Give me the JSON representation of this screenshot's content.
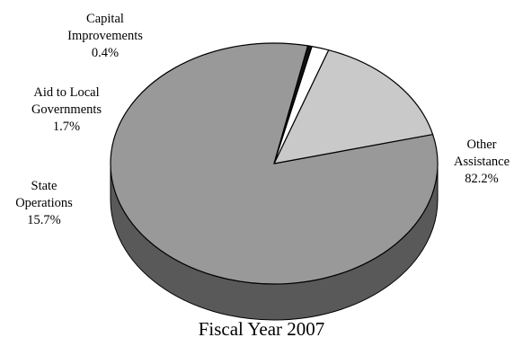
{
  "chart_data": {
    "type": "pie",
    "title": "Fiscal Year 2007",
    "slices": [
      {
        "label_lines": [
          "Other",
          "Assistance"
        ],
        "value": 82.2,
        "value_text": "82.2%",
        "color": "#999999",
        "side_color": "#595959"
      },
      {
        "label_lines": [
          "State",
          "Operations"
        ],
        "value": 15.7,
        "value_text": "15.7%",
        "color": "#c9c9c9",
        "side_color": "#8a8a8a"
      },
      {
        "label_lines": [
          "Aid to Local",
          "Governments"
        ],
        "value": 1.7,
        "value_text": "1.7%",
        "color": "#ffffff",
        "side_color": "#cccccc"
      },
      {
        "label_lines": [
          "Capital",
          "Improvements"
        ],
        "value": 0.4,
        "value_text": "0.4%",
        "color": "#111111",
        "side_color": "#000000"
      }
    ],
    "style": "3d-pie",
    "legend": "none"
  }
}
